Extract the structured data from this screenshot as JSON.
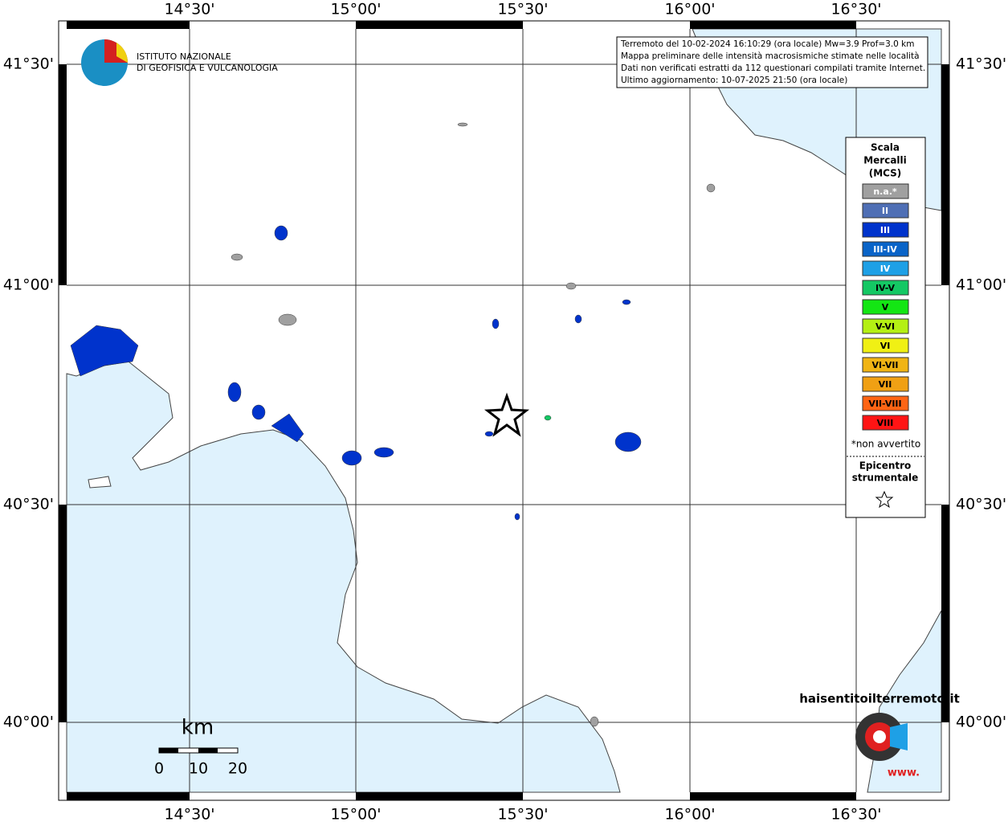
{
  "map": {
    "lon_labels": [
      "14°30'",
      "15°00'",
      "15°30'",
      "16°00'",
      "16°30'"
    ],
    "lat_labels": [
      "41°30'",
      "41°00'",
      "40°30'",
      "40°00'"
    ],
    "info": [
      "Terremoto del 10-02-2024 16:10:29 (ora locale) Mw=3.9 Prof=3.0 km",
      "Mappa preliminare delle intensità macrosismiche stimate nelle località",
      "Dati non verificati estratti da 112 questionari compilati tramite Internet.",
      "Ultimo aggiornamento: 10-07-2025 21:50 (ora locale)"
    ],
    "logo": [
      "ISTITUTO NAZIONALE",
      "DI GEOFISICA E VULCANOLOGIA"
    ],
    "legend": {
      "title": [
        "Scala",
        "Mercalli",
        "(MCS)"
      ],
      "items": [
        "n.a.*",
        "II",
        "III",
        "III-IV",
        "IV",
        "IV-V",
        "V",
        "V-VI",
        "VI",
        "VI-VII",
        "VII",
        "VII-VIII",
        "VIII"
      ],
      "colors": [
        "#a0a0a0",
        "#4f6fb5",
        "#0033cc",
        "#0a64c8",
        "#1ea0e6",
        "#14c864",
        "#14e614",
        "#b4f014",
        "#f0f014",
        "#f0b414",
        "#f0a014",
        "#ff6414",
        "#ff1414"
      ],
      "note": "*non avvertito",
      "epicenter": [
        "Epicentro",
        "strumentale"
      ]
    },
    "scale": {
      "unit": "km",
      "ticks": [
        "0",
        "10",
        "20"
      ]
    },
    "watermark": [
      "haisentitoilterremoto.it",
      "www."
    ]
  }
}
